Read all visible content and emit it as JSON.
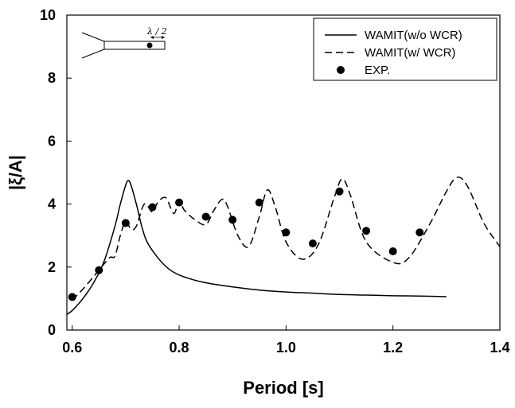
{
  "chart_data": {
    "type": "line",
    "title": "",
    "xlabel": "Period [s]",
    "ylabel": "|ξ/A|",
    "xlim": [
      0.59,
      1.4
    ],
    "ylim": [
      0,
      10
    ],
    "xticks": [
      "0.6",
      "0.8",
      "1.0",
      "1.2",
      "1.4"
    ],
    "xtick_values": [
      0.6,
      0.8,
      1.0,
      1.2,
      1.4
    ],
    "yticks": [
      "0",
      "2",
      "4",
      "6",
      "8",
      "10"
    ],
    "ytick_values": [
      0,
      2,
      4,
      6,
      8,
      10
    ],
    "grid": false,
    "legend_position": "top-right",
    "inset_annotation": "λ / 2",
    "series": [
      {
        "name": "WAMIT(w/o WCR)",
        "style": "solid",
        "color": "#000000",
        "x": [
          0.59,
          0.6,
          0.62,
          0.64,
          0.66,
          0.68,
          0.69,
          0.7,
          0.705,
          0.71,
          0.72,
          0.73,
          0.74,
          0.76,
          0.78,
          0.8,
          0.83,
          0.86,
          0.9,
          0.95,
          1.0,
          1.05,
          1.1,
          1.15,
          1.2,
          1.25,
          1.3
        ],
        "y": [
          0.5,
          0.62,
          1.0,
          1.5,
          2.2,
          3.3,
          4.0,
          4.6,
          4.75,
          4.6,
          4.0,
          3.3,
          2.8,
          2.3,
          1.95,
          1.75,
          1.58,
          1.47,
          1.37,
          1.27,
          1.21,
          1.17,
          1.13,
          1.11,
          1.09,
          1.08,
          1.06
        ]
      },
      {
        "name": "WAMIT(w/ WCR)",
        "style": "dashed",
        "color": "#000000",
        "x": [
          0.6,
          0.62,
          0.65,
          0.67,
          0.68,
          0.69,
          0.7,
          0.71,
          0.72,
          0.735,
          0.75,
          0.76,
          0.775,
          0.79,
          0.8,
          0.81,
          0.83,
          0.85,
          0.865,
          0.88,
          0.89,
          0.91,
          0.93,
          0.95,
          0.965,
          0.98,
          1.0,
          1.03,
          1.06,
          1.09,
          1.105,
          1.12,
          1.15,
          1.2,
          1.23,
          1.27,
          1.3,
          1.32,
          1.34,
          1.37,
          1.4
        ],
        "y": [
          0.95,
          1.3,
          1.9,
          2.3,
          2.35,
          3.0,
          3.45,
          3.2,
          3.3,
          4.0,
          3.75,
          4.05,
          4.2,
          3.7,
          4.1,
          3.8,
          3.5,
          3.35,
          3.8,
          4.15,
          3.95,
          3.0,
          2.65,
          3.6,
          4.45,
          3.9,
          2.8,
          2.25,
          2.7,
          4.2,
          4.8,
          4.3,
          2.8,
          2.15,
          2.3,
          3.4,
          4.4,
          4.85,
          4.55,
          3.4,
          2.65
        ]
      },
      {
        "name": "EXP.",
        "style": "marker",
        "color": "#000000",
        "x": [
          0.6,
          0.65,
          0.7,
          0.75,
          0.8,
          0.85,
          0.9,
          0.95,
          1.0,
          1.05,
          1.1,
          1.15,
          1.2,
          1.25
        ],
        "y": [
          1.05,
          1.9,
          3.4,
          3.9,
          4.05,
          3.6,
          3.5,
          4.05,
          3.1,
          2.75,
          4.4,
          3.15,
          2.5,
          3.1
        ]
      }
    ]
  }
}
